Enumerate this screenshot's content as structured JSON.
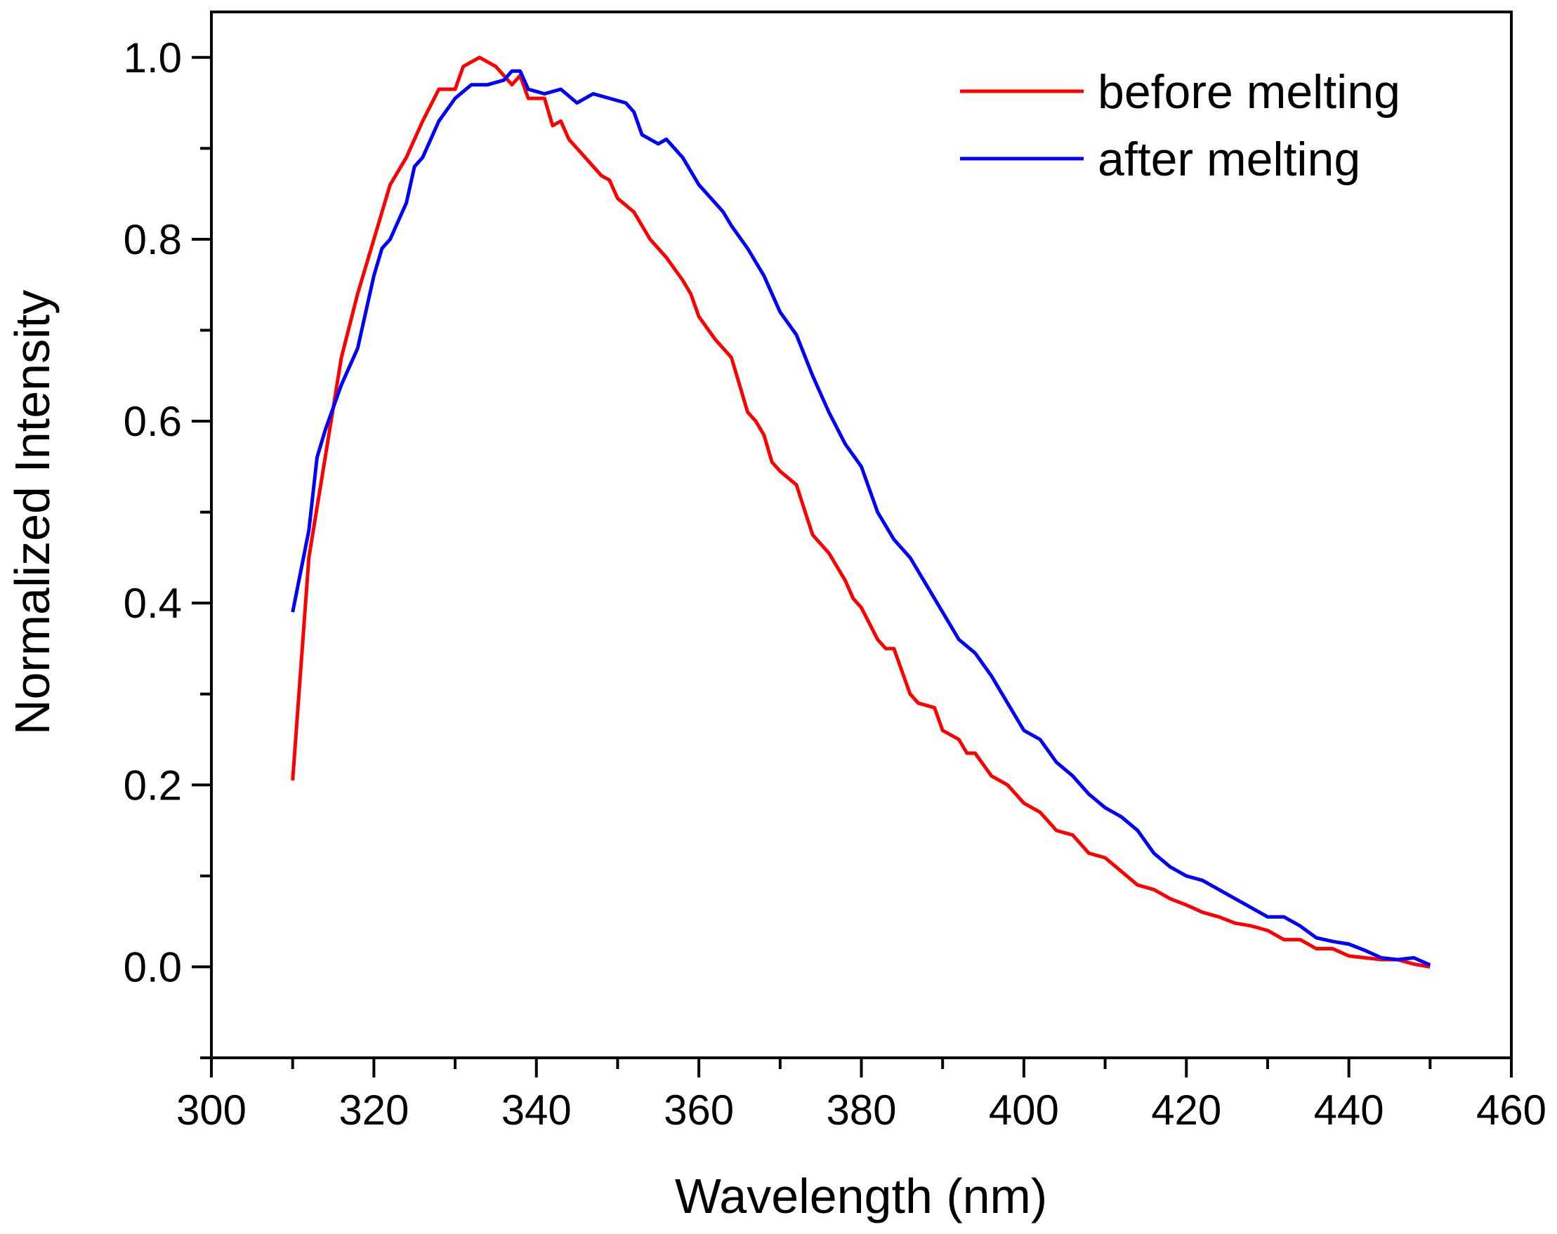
{
  "chart_data": {
    "type": "line",
    "title": "",
    "xlabel": "Wavelength (nm)",
    "ylabel": "Normalized Intensity",
    "xlim": [
      300,
      460
    ],
    "ylim": [
      -0.1,
      1.05
    ],
    "xticks": [
      300,
      320,
      340,
      360,
      380,
      400,
      420,
      440,
      460
    ],
    "xtick_labels": [
      "300",
      "320",
      "340",
      "360",
      "380",
      "400",
      "420",
      "440",
      "460"
    ],
    "yticks": [
      0.0,
      0.2,
      0.4,
      0.6,
      0.8,
      1.0
    ],
    "ytick_labels": [
      "0.0",
      "0.2",
      "0.4",
      "0.6",
      "0.8",
      "1.0"
    ],
    "grid": false,
    "legend_position": "top-right",
    "series": [
      {
        "name": "before melting",
        "color": "#ff0000",
        "x": [
          310,
          312,
          314,
          316,
          318,
          320,
          322,
          324,
          326,
          328,
          330,
          331,
          333,
          335,
          337,
          338,
          339,
          341,
          342,
          343,
          344,
          346,
          348,
          349,
          350,
          352,
          354,
          356,
          358,
          359,
          360,
          362,
          364,
          365,
          366,
          367,
          368,
          369,
          370,
          372,
          374,
          376,
          378,
          379,
          380,
          382,
          383,
          384,
          386,
          387,
          389,
          390,
          392,
          393,
          394,
          396,
          398,
          400,
          402,
          404,
          406,
          408,
          410,
          412,
          414,
          416,
          418,
          420,
          422,
          424,
          426,
          428,
          430,
          432,
          434,
          436,
          438,
          440,
          442,
          444,
          446,
          448,
          450
        ],
        "y": [
          0.205,
          0.45,
          0.56,
          0.67,
          0.74,
          0.8,
          0.86,
          0.89,
          0.93,
          0.965,
          0.965,
          0.99,
          1.0,
          0.99,
          0.97,
          0.98,
          0.955,
          0.955,
          0.925,
          0.93,
          0.91,
          0.89,
          0.87,
          0.865,
          0.845,
          0.83,
          0.8,
          0.78,
          0.755,
          0.74,
          0.715,
          0.69,
          0.67,
          0.64,
          0.61,
          0.6,
          0.585,
          0.555,
          0.545,
          0.53,
          0.475,
          0.455,
          0.425,
          0.405,
          0.395,
          0.36,
          0.35,
          0.35,
          0.3,
          0.29,
          0.285,
          0.26,
          0.25,
          0.235,
          0.235,
          0.21,
          0.2,
          0.18,
          0.17,
          0.15,
          0.145,
          0.125,
          0.12,
          0.105,
          0.09,
          0.085,
          0.075,
          0.068,
          0.06,
          0.055,
          0.048,
          0.045,
          0.04,
          0.03,
          0.03,
          0.02,
          0.02,
          0.012,
          0.01,
          0.008,
          0.008,
          0.003,
          0.0
        ]
      },
      {
        "name": "after melting",
        "color": "#0000ff",
        "x": [
          310,
          312,
          313,
          314,
          316,
          318,
          320,
          321,
          322,
          324,
          325,
          326,
          328,
          330,
          332,
          334,
          336,
          337,
          338,
          339,
          341,
          343,
          345,
          347,
          349,
          351,
          352,
          353,
          355,
          356,
          358,
          360,
          362,
          363,
          364,
          366,
          368,
          370,
          372,
          374,
          376,
          378,
          380,
          382,
          384,
          386,
          388,
          390,
          392,
          394,
          396,
          398,
          400,
          402,
          404,
          406,
          408,
          410,
          412,
          414,
          416,
          418,
          420,
          422,
          424,
          426,
          428,
          430,
          432,
          434,
          436,
          438,
          440,
          442,
          444,
          446,
          448,
          450
        ],
        "y": [
          0.39,
          0.48,
          0.56,
          0.59,
          0.64,
          0.68,
          0.76,
          0.79,
          0.8,
          0.84,
          0.88,
          0.89,
          0.93,
          0.955,
          0.97,
          0.97,
          0.975,
          0.985,
          0.985,
          0.965,
          0.96,
          0.965,
          0.95,
          0.96,
          0.955,
          0.95,
          0.94,
          0.915,
          0.905,
          0.91,
          0.89,
          0.86,
          0.84,
          0.83,
          0.815,
          0.79,
          0.76,
          0.72,
          0.695,
          0.65,
          0.61,
          0.575,
          0.55,
          0.5,
          0.47,
          0.45,
          0.42,
          0.39,
          0.36,
          0.345,
          0.32,
          0.29,
          0.26,
          0.25,
          0.225,
          0.21,
          0.19,
          0.175,
          0.165,
          0.15,
          0.125,
          0.11,
          0.1,
          0.095,
          0.085,
          0.075,
          0.065,
          0.055,
          0.055,
          0.045,
          0.032,
          0.028,
          0.025,
          0.018,
          0.01,
          0.008,
          0.01,
          0.002
        ]
      }
    ]
  }
}
